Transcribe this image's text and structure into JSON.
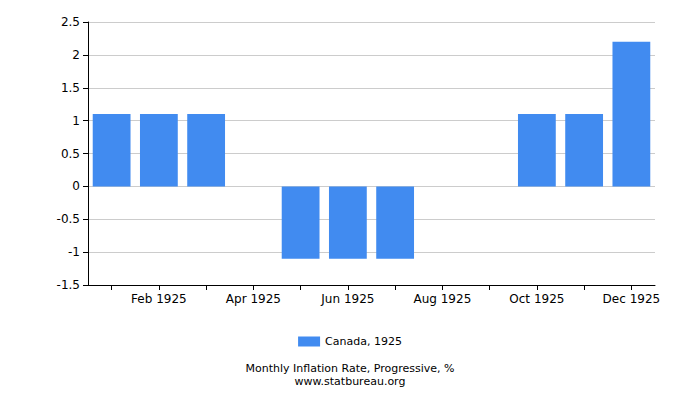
{
  "chart_data": {
    "type": "bar",
    "title": "Monthly Inflation Rate, Progressive, %",
    "subtitle": "www.statbureau.org",
    "categories": [
      null,
      "Feb 1925",
      null,
      "Apr 1925",
      null,
      "Jun 1925",
      null,
      "Aug 1925",
      null,
      "Oct 1925",
      null,
      "Dec 1925"
    ],
    "series": [
      {
        "name": "Canada, 1925",
        "color": "#418bf0",
        "values": [
          1.1,
          1.1,
          1.1,
          0,
          -1.1,
          -1.1,
          -1.1,
          0,
          0,
          1.1,
          1.1,
          2.2
        ]
      }
    ],
    "ylim": [
      -1.5,
      2.5
    ],
    "yticks": [
      -1.5,
      -1,
      -0.5,
      0,
      0.5,
      1,
      1.5,
      2,
      2.5
    ],
    "grid": true,
    "legend": "bottom"
  }
}
